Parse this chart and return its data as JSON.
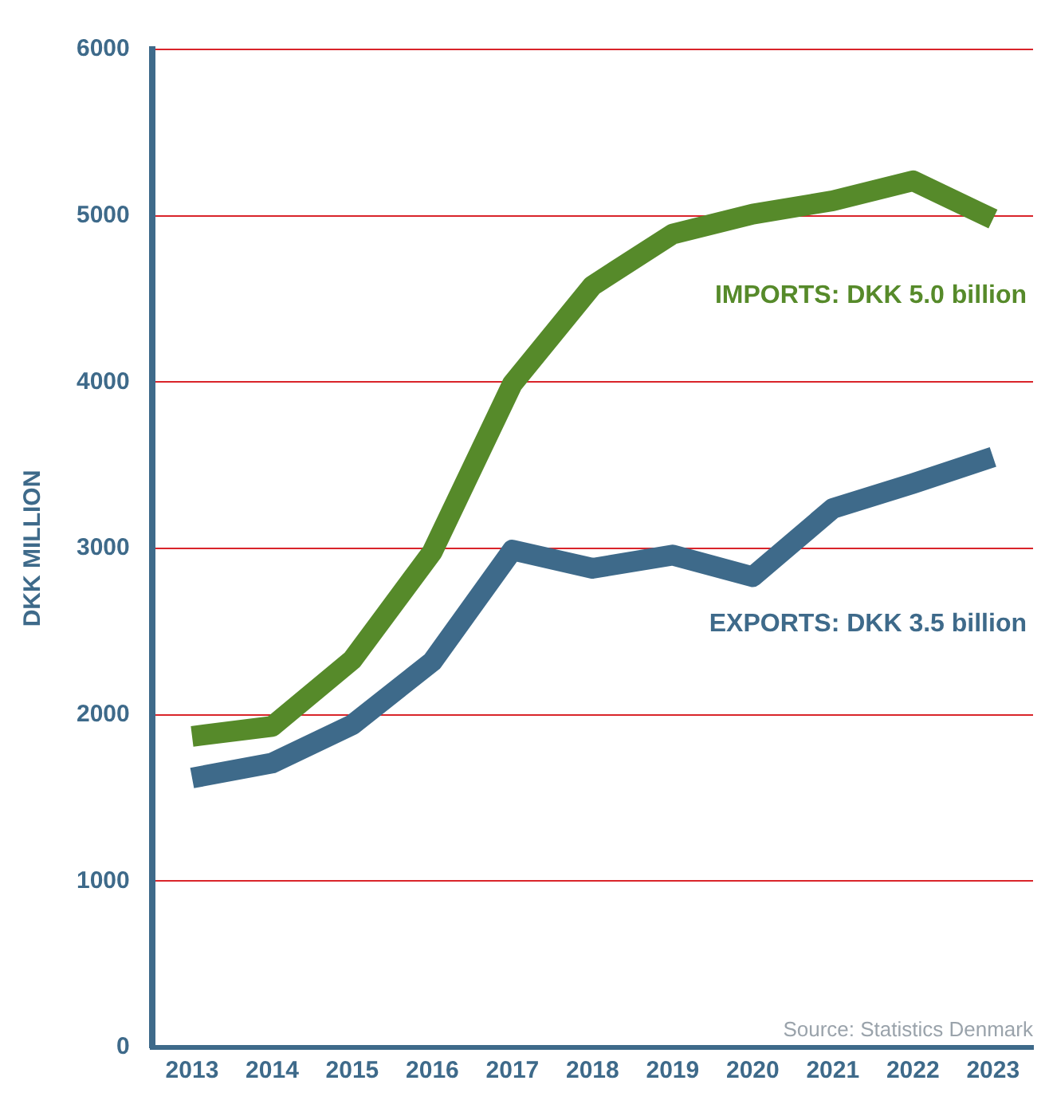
{
  "chart_data": {
    "type": "line",
    "ylabel": "DKK MILLION",
    "categories": [
      "2013",
      "2014",
      "2015",
      "2016",
      "2017",
      "2018",
      "2019",
      "2020",
      "2021",
      "2022",
      "2023"
    ],
    "series": [
      {
        "name": "IMPORTS: DKK 5.0 billion",
        "color": "#568a2a",
        "values": [
          1870,
          1930,
          2330,
          2980,
          3990,
          4580,
          4890,
          5010,
          5090,
          5210,
          4980
        ]
      },
      {
        "name": "EXPORTS: DKK 3.5 billion",
        "color": "#3e6a8a",
        "values": [
          1620,
          1710,
          1940,
          2320,
          2990,
          2880,
          2960,
          2830,
          3240,
          3390,
          3550
        ]
      }
    ],
    "ylim": [
      0,
      6000
    ],
    "yticks": [
      0,
      1000,
      2000,
      3000,
      4000,
      5000,
      6000
    ],
    "grid": "y",
    "legend": false,
    "marker": "none",
    "line_style": "solid",
    "annotations": [
      "Source: Statistics Denmark"
    ]
  }
}
